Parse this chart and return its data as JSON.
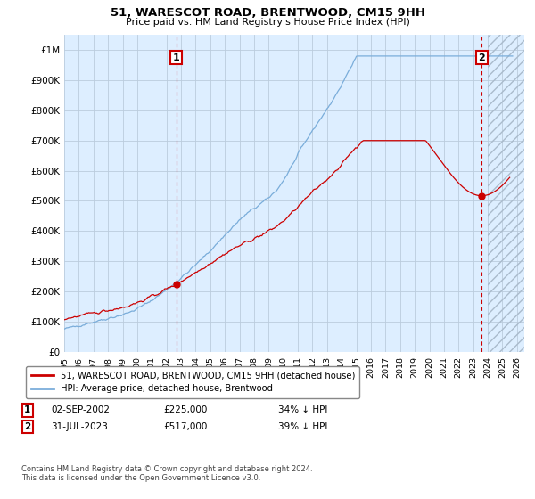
{
  "title": "51, WARESCOT ROAD, BRENTWOOD, CM15 9HH",
  "subtitle": "Price paid vs. HM Land Registry's House Price Index (HPI)",
  "ytick_values": [
    0,
    100000,
    200000,
    300000,
    400000,
    500000,
    600000,
    700000,
    800000,
    900000,
    1000000
  ],
  "ylim": [
    0,
    1050000
  ],
  "xlim_start": 1995.0,
  "xlim_end": 2026.5,
  "hpi_color": "#7aadda",
  "price_color": "#cc0000",
  "sale1_date": 2002.67,
  "sale1_price": 225000,
  "sale2_date": 2023.58,
  "sale2_price": 517000,
  "annotation1_label": "1",
  "annotation2_label": "2",
  "legend_line1": "51, WARESCOT ROAD, BRENTWOOD, CM15 9HH (detached house)",
  "legend_line2": "HPI: Average price, detached house, Brentwood",
  "footnote": "Contains HM Land Registry data © Crown copyright and database right 2024.\nThis data is licensed under the Open Government Licence v3.0.",
  "bg_color": "#ffffff",
  "plot_bg_color": "#ddeeff",
  "grid_color": "#bbccdd",
  "vline_color": "#cc0000"
}
